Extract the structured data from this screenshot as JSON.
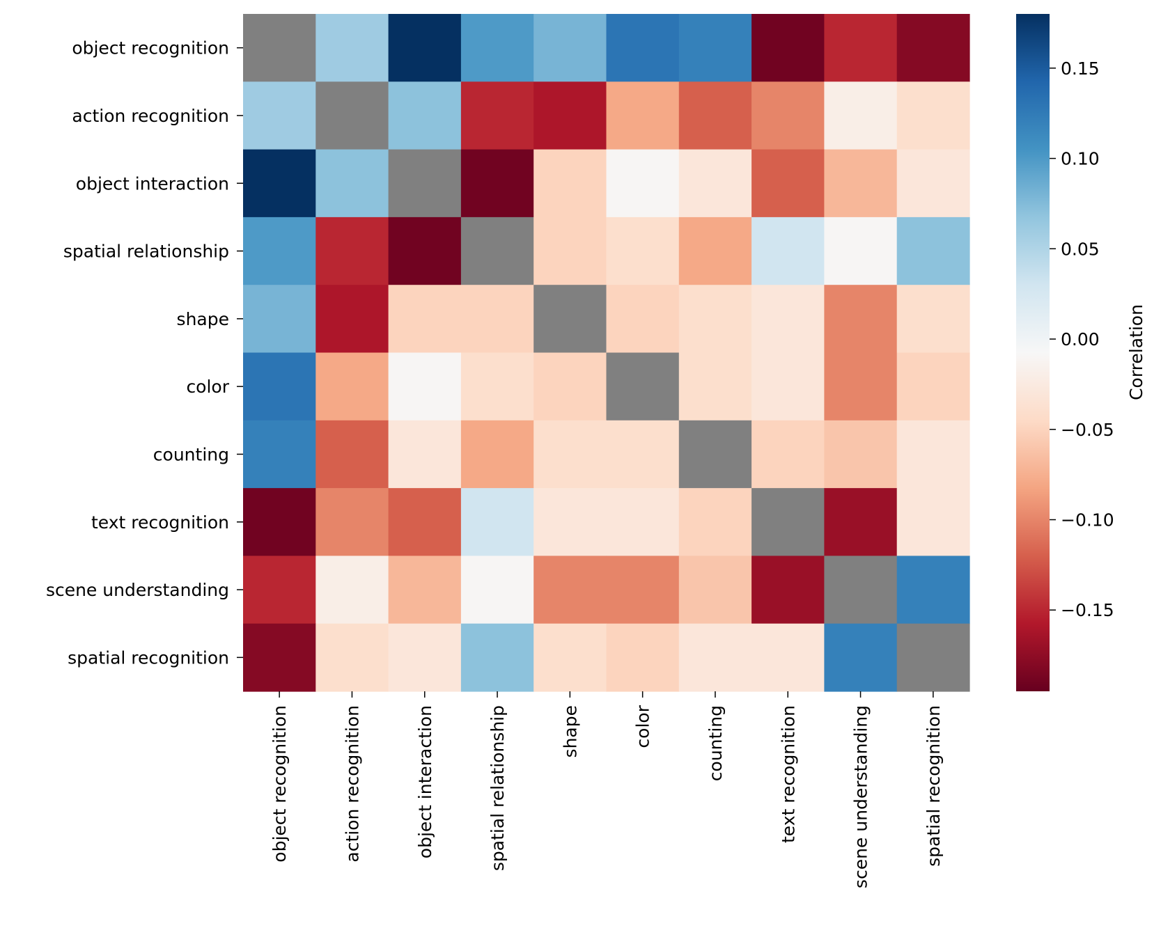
{
  "chart_data": {
    "type": "heatmap",
    "title": "",
    "xlabel": "",
    "ylabel": "",
    "labels": [
      "object recognition",
      "action recognition",
      "object interaction",
      "spatial relationship",
      "shape",
      "color",
      "counting",
      "text recognition",
      "scene understanding",
      "spatial recognition"
    ],
    "matrix": [
      [
        null,
        0.06,
        0.18,
        0.1,
        0.08,
        0.13,
        0.12,
        -0.19,
        -0.15,
        -0.18
      ],
      [
        0.06,
        null,
        0.07,
        -0.15,
        -0.16,
        -0.08,
        -0.12,
        -0.1,
        -0.02,
        -0.04
      ],
      [
        0.18,
        0.07,
        null,
        -0.19,
        -0.05,
        -0.01,
        -0.03,
        -0.12,
        -0.07,
        -0.03
      ],
      [
        0.1,
        -0.15,
        -0.19,
        null,
        -0.05,
        -0.04,
        -0.08,
        0.03,
        -0.01,
        0.07
      ],
      [
        0.08,
        -0.16,
        -0.05,
        -0.05,
        null,
        -0.05,
        -0.04,
        -0.03,
        -0.1,
        -0.04
      ],
      [
        0.13,
        -0.08,
        -0.01,
        -0.04,
        -0.05,
        null,
        -0.04,
        -0.03,
        -0.1,
        -0.05
      ],
      [
        0.12,
        -0.12,
        -0.03,
        -0.08,
        -0.04,
        -0.04,
        null,
        -0.05,
        -0.06,
        -0.03
      ],
      [
        -0.19,
        -0.1,
        -0.12,
        0.03,
        -0.03,
        -0.03,
        -0.05,
        null,
        -0.17,
        -0.03
      ],
      [
        -0.15,
        -0.02,
        -0.07,
        -0.01,
        -0.1,
        -0.1,
        -0.06,
        -0.17,
        null,
        0.12
      ],
      [
        -0.18,
        -0.04,
        -0.03,
        0.07,
        -0.04,
        -0.05,
        -0.03,
        -0.03,
        0.12,
        null
      ]
    ],
    "diagonal_color": "#808080",
    "vmin": -0.195,
    "vmax": 0.18,
    "colormap": "RdBu",
    "colorbar": {
      "label": "Correlation",
      "ticks": [
        0.15,
        0.1,
        0.05,
        0.0,
        -0.05,
        -0.1,
        -0.15
      ],
      "tick_labels": [
        "0.15",
        "0.10",
        "0.05",
        "0.00",
        "−0.05",
        "−0.10",
        "−0.15"
      ],
      "placement": "right"
    },
    "grid": false
  }
}
